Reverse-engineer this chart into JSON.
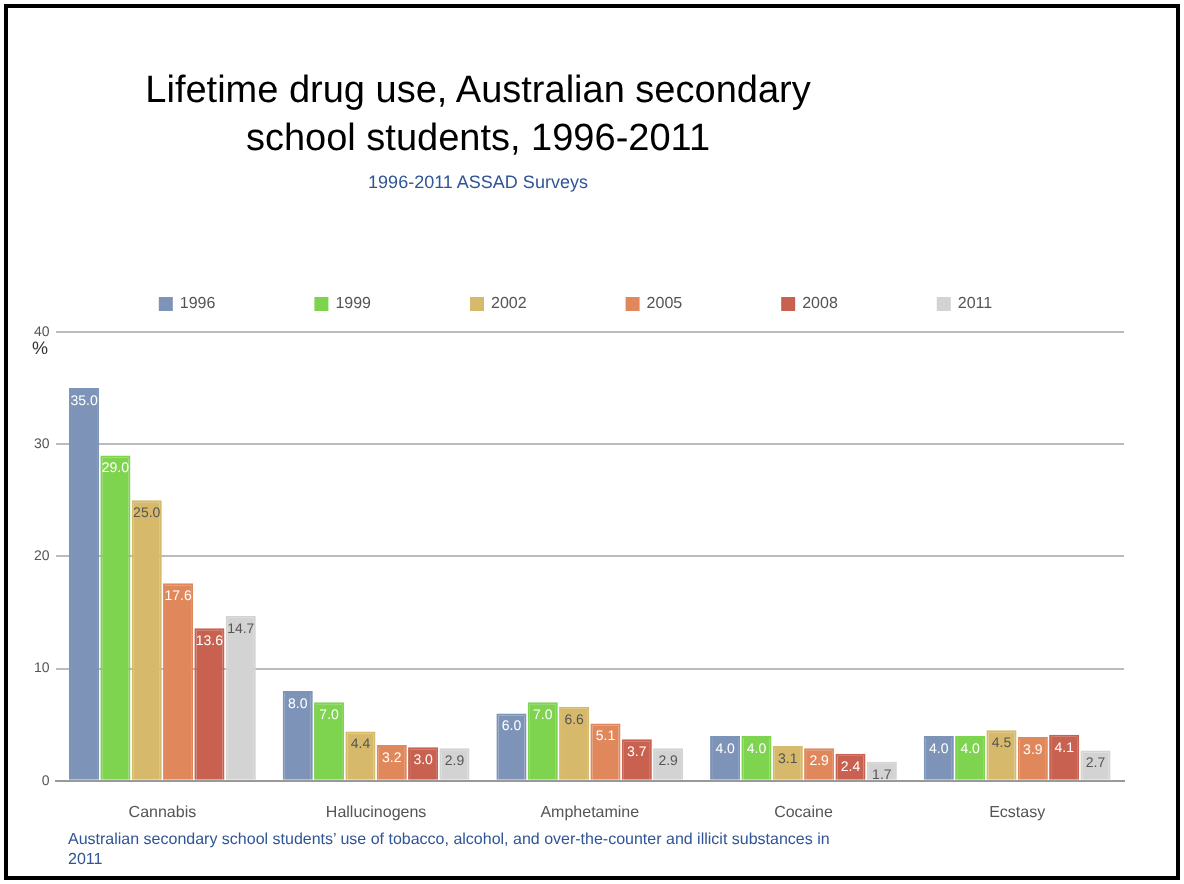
{
  "chart_data": {
    "type": "bar",
    "title": "Lifetime drug use, Australian secondary school students, 1996-2011",
    "subtitle": "1996-2011 ASSAD Surveys",
    "ylabel": "%",
    "categories": [
      "Cannabis",
      "Hallucinogens",
      "Amphetamine",
      "Cocaine",
      "Ecstasy"
    ],
    "series": [
      {
        "name": "1996",
        "color": "#7d93b8",
        "values": [
          35.0,
          8.0,
          6.0,
          4.0,
          4.0
        ],
        "value_labels": [
          "35.0",
          "8.0",
          "6.0",
          "4.0",
          "4.0"
        ]
      },
      {
        "name": "1999",
        "color": "#7ed34f",
        "values": [
          29.0,
          7.0,
          7.0,
          4.0,
          4.0
        ],
        "value_labels": [
          "29.0",
          "7.0",
          "7.0",
          "4.0",
          "4.0"
        ]
      },
      {
        "name": "2002",
        "color": "#d6b96a",
        "values": [
          25.0,
          4.4,
          6.6,
          3.1,
          4.5
        ],
        "value_labels": [
          "25.0",
          "4.4",
          "6.6",
          "3.1",
          "4.5"
        ]
      },
      {
        "name": "2005",
        "color": "#e0885c",
        "values": [
          17.6,
          3.2,
          5.1,
          2.9,
          3.9
        ],
        "value_labels": [
          "17.6",
          "3.2",
          "5.1",
          "2.9",
          "3.9"
        ]
      },
      {
        "name": "2008",
        "color": "#c8614f",
        "values": [
          13.6,
          3.0,
          3.7,
          2.4,
          4.1
        ],
        "value_labels": [
          "13.6",
          "3.0",
          "3.7",
          "2.4",
          "4.1"
        ]
      },
      {
        "name": "2011",
        "color": "#d3d3d3",
        "values": [
          14.7,
          2.9,
          2.9,
          1.7,
          2.7
        ],
        "value_labels": [
          "14.7",
          "2.9",
          "2.9",
          "1.7",
          "2.7"
        ]
      }
    ],
    "ylim": [
      0,
      40
    ],
    "yticks": [
      0,
      10,
      20,
      30,
      40
    ],
    "grid": "y",
    "legend": "top",
    "annotations": [
      "Australian secondary school students’ use of tobacco, alcohol, and over-the-counter and illicit substances in 2011"
    ]
  }
}
